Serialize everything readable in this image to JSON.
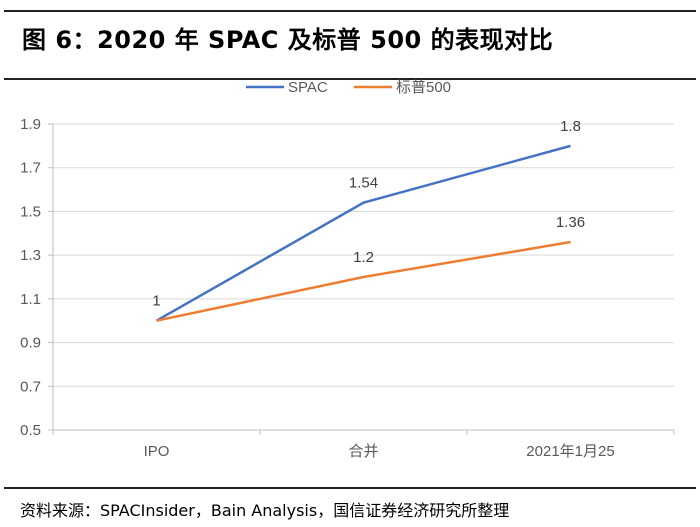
{
  "header": {
    "title": "图 6：2020 年 SPAC 及标普 500 的表现对比"
  },
  "footer": {
    "source": "资料来源：SPACInsider，Bain Analysis，国信证券经济研究所整理"
  },
  "chart_data": {
    "type": "line",
    "title": "",
    "categories": [
      "IPO",
      "合并",
      "2021年1月25"
    ],
    "series": [
      {
        "name": "SPAC",
        "values": [
          1,
          1.54,
          1.8
        ],
        "color": "#4472C4"
      },
      {
        "name": "标普500",
        "values": [
          1,
          1.2,
          1.36
        ],
        "color": "#ED7D31"
      }
    ],
    "data_labels": [
      [
        "",
        "1.54",
        "1.8"
      ],
      [
        "1",
        "1.2",
        "1.36"
      ]
    ],
    "ylim": [
      0.5,
      1.9
    ],
    "yticks": [
      "0.5",
      "0.7",
      "0.9",
      "1.1",
      "1.3",
      "1.5",
      "1.7",
      "1.9"
    ],
    "grid": true,
    "legend": "top"
  }
}
